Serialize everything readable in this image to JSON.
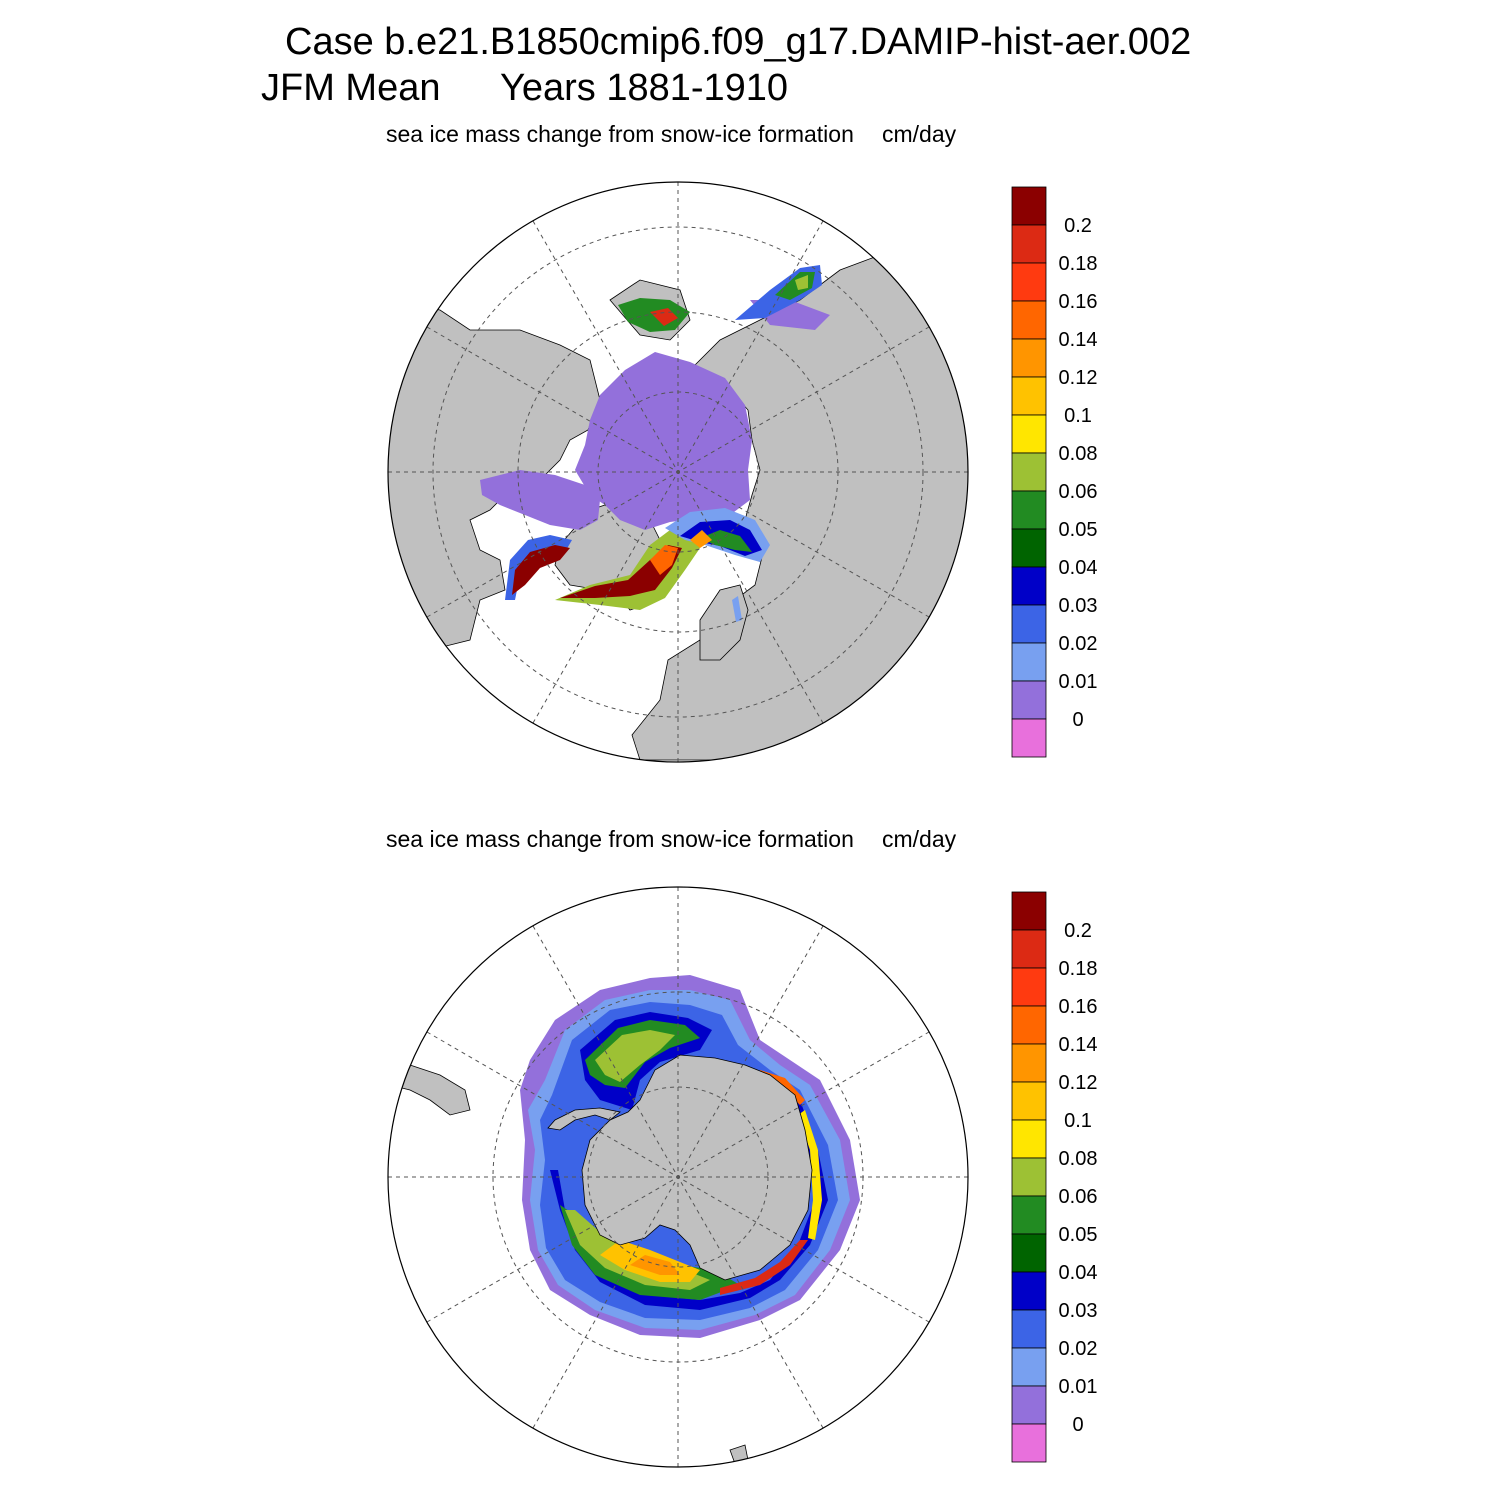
{
  "header": {
    "case_line": "Case b.e21.B1850cmip6.f09_g17.DAMIP-hist-aer.002",
    "season": "JFM Mean",
    "years": "Years 1881-1910"
  },
  "panels": [
    {
      "id": "north",
      "variable": "sea ice mass change from snow-ice formation",
      "units": "cm/day"
    },
    {
      "id": "south",
      "variable": "sea ice mass change from snow-ice formation",
      "units": "cm/day"
    }
  ],
  "colorbar": {
    "labels": [
      "0.2",
      "0.18",
      "0.16",
      "0.14",
      "0.12",
      "0.1",
      "0.08",
      "0.06",
      "0.05",
      "0.04",
      "0.03",
      "0.02",
      "0.01",
      "0"
    ],
    "colors": [
      "#8b0000",
      "#dc2a14",
      "#ff3a10",
      "#ff6600",
      "#ff9500",
      "#ffc200",
      "#ffe600",
      "#9dc134",
      "#228b22",
      "#006400",
      "#0000c8",
      "#3c64e6",
      "#78a0f0",
      "#9370db",
      "#e870dc"
    ]
  },
  "map_colors": {
    "land": "#c0c0c0",
    "ocean": "#ffffff",
    "grid": "#555555"
  }
}
